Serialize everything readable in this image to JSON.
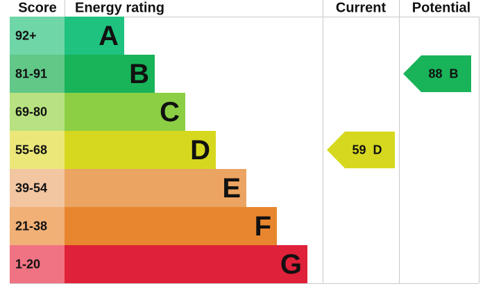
{
  "header": {
    "score": "Score",
    "rating": "Energy rating",
    "current": "Current",
    "potential": "Potential"
  },
  "bands": [
    {
      "score": "92+",
      "letter": "A",
      "color": "#1fc37f",
      "light": "#6fd6a8"
    },
    {
      "score": "81-91",
      "letter": "B",
      "color": "#19b35a",
      "light": "#61c888"
    },
    {
      "score": "69-80",
      "letter": "C",
      "color": "#8ccf45",
      "light": "#b8e281"
    },
    {
      "score": "55-68",
      "letter": "D",
      "color": "#d6d81f",
      "light": "#ebe879"
    },
    {
      "score": "39-54",
      "letter": "E",
      "color": "#eba461",
      "light": "#f3c6a2"
    },
    {
      "score": "21-38",
      "letter": "F",
      "color": "#e8862f",
      "light": "#f1b076"
    },
    {
      "score": "1-20",
      "letter": "G",
      "color": "#df2139",
      "light": "#f07383"
    }
  ],
  "current": {
    "value": 59,
    "letter": "D",
    "color": "#d6d81f"
  },
  "potential": {
    "value": 88,
    "letter": "B",
    "color": "#19b35a"
  }
}
